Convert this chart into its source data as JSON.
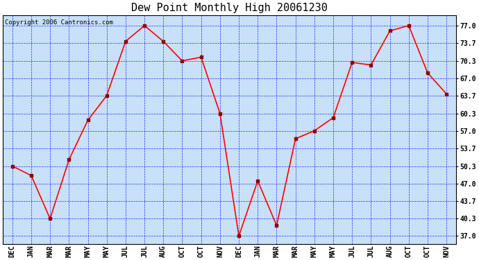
{
  "title": "Dew Point Monthly High 20061230",
  "copyright": "Copyright 2006 Cantronics.com",
  "x_labels": [
    "DEC",
    "JAN",
    "MAR",
    "MAR",
    "MAY",
    "MAY",
    "JUL",
    "JUL",
    "AUG",
    "OCT",
    "OCT",
    "NOV",
    "DEC",
    "JAN",
    "MAR",
    "MAR",
    "MAY",
    "MAY",
    "JUL",
    "JUL",
    "AUG",
    "OCT",
    "OCT",
    "NOV"
  ],
  "y_values": [
    50.3,
    48.5,
    40.3,
    51.5,
    59.0,
    63.7,
    74.0,
    77.0,
    74.0,
    70.3,
    71.0,
    60.3,
    37.0,
    47.5,
    39.0,
    55.5,
    57.0,
    59.5,
    70.0,
    69.5,
    76.0,
    77.0,
    68.0,
    64.0
  ],
  "y_ticks": [
    37.0,
    40.3,
    43.7,
    47.0,
    50.3,
    53.7,
    57.0,
    60.3,
    63.7,
    67.0,
    70.3,
    73.7,
    77.0
  ],
  "ylim": [
    35.5,
    79.0
  ],
  "line_color": "red",
  "marker_color": "darkred",
  "bg_color": "#c8e0f8",
  "border_color": "black",
  "grid_color": "blue",
  "title_fontsize": 11,
  "copyright_fontsize": 6.5,
  "tick_fontsize": 7,
  "y_tick_labels": [
    "37.0",
    "40.3",
    "43.7",
    "47.0",
    "50.3",
    "53.7",
    "57.0",
    "60.3",
    "63.7",
    "67.0",
    "70.3",
    "73.7",
    "77.0"
  ]
}
